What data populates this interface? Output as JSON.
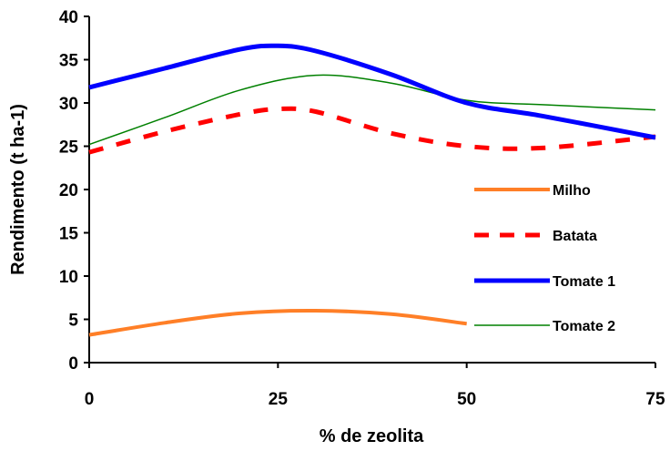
{
  "chart_data": {
    "type": "line",
    "title": "",
    "xlabel": "% de zeolita",
    "ylabel": "Rendimento (t ha-1)",
    "xlim": [
      0,
      75
    ],
    "ylim": [
      0,
      40
    ],
    "xticks": [
      "0",
      "25",
      "50",
      "75"
    ],
    "yticks": [
      "0",
      "5",
      "10",
      "15",
      "20",
      "25",
      "30",
      "35",
      "40"
    ],
    "grid": false,
    "legend_position": "bottom-right",
    "series": [
      {
        "name": "Milho",
        "color": "#ff7f27",
        "style": "solid",
        "x": [
          0,
          10,
          20,
          30,
          40,
          50
        ],
        "y": [
          3.2,
          4.6,
          5.7,
          6.0,
          5.6,
          4.5
        ]
      },
      {
        "name": "Batata",
        "color": "#ff0000",
        "style": "dashed",
        "x": [
          0,
          10,
          20,
          25,
          30,
          40,
          50,
          60,
          75
        ],
        "y": [
          24.3,
          26.7,
          28.7,
          29.3,
          29.0,
          26.5,
          25.0,
          24.8,
          26.1
        ]
      },
      {
        "name": "Tomate 1",
        "color": "#0000ff",
        "style": "solid",
        "x": [
          0,
          10,
          20,
          25,
          30,
          40,
          50,
          60,
          75
        ],
        "y": [
          31.8,
          34.0,
          36.2,
          36.6,
          36.0,
          33.3,
          30.0,
          28.5,
          26.0
        ]
      },
      {
        "name": "Tomate 2",
        "color": "#008000",
        "style": "solid",
        "x": [
          0,
          10,
          20,
          30,
          40,
          50,
          60,
          75
        ],
        "y": [
          25.2,
          28.3,
          31.5,
          33.2,
          32.3,
          30.3,
          29.8,
          29.2
        ]
      }
    ]
  }
}
